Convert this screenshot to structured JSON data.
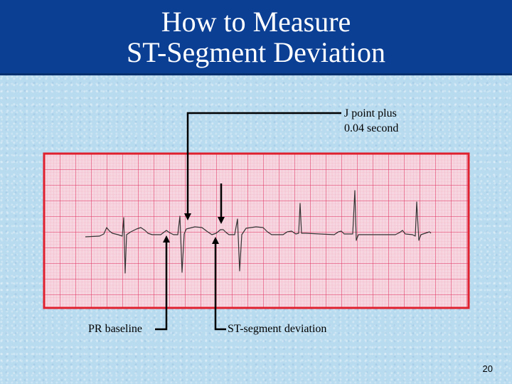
{
  "slide": {
    "title_line1": "How to Measure",
    "title_line2": "ST-Segment Deviation",
    "page_number": "20"
  },
  "colors": {
    "header": "#0b3f94",
    "background": "#b9dbef",
    "ecg_paper": "#f6d6e0",
    "grid_major": "#e0285a",
    "grid_minor": "#f2a9bf",
    "paper_border": "#e0202e",
    "trace": "#333333",
    "annotation_lines": "#000000"
  },
  "labels": {
    "j_point_line1": "J point plus",
    "j_point_line2": "0.04 second",
    "pr_baseline": "PR baseline",
    "st_deviation": "ST-segment deviation"
  }
}
